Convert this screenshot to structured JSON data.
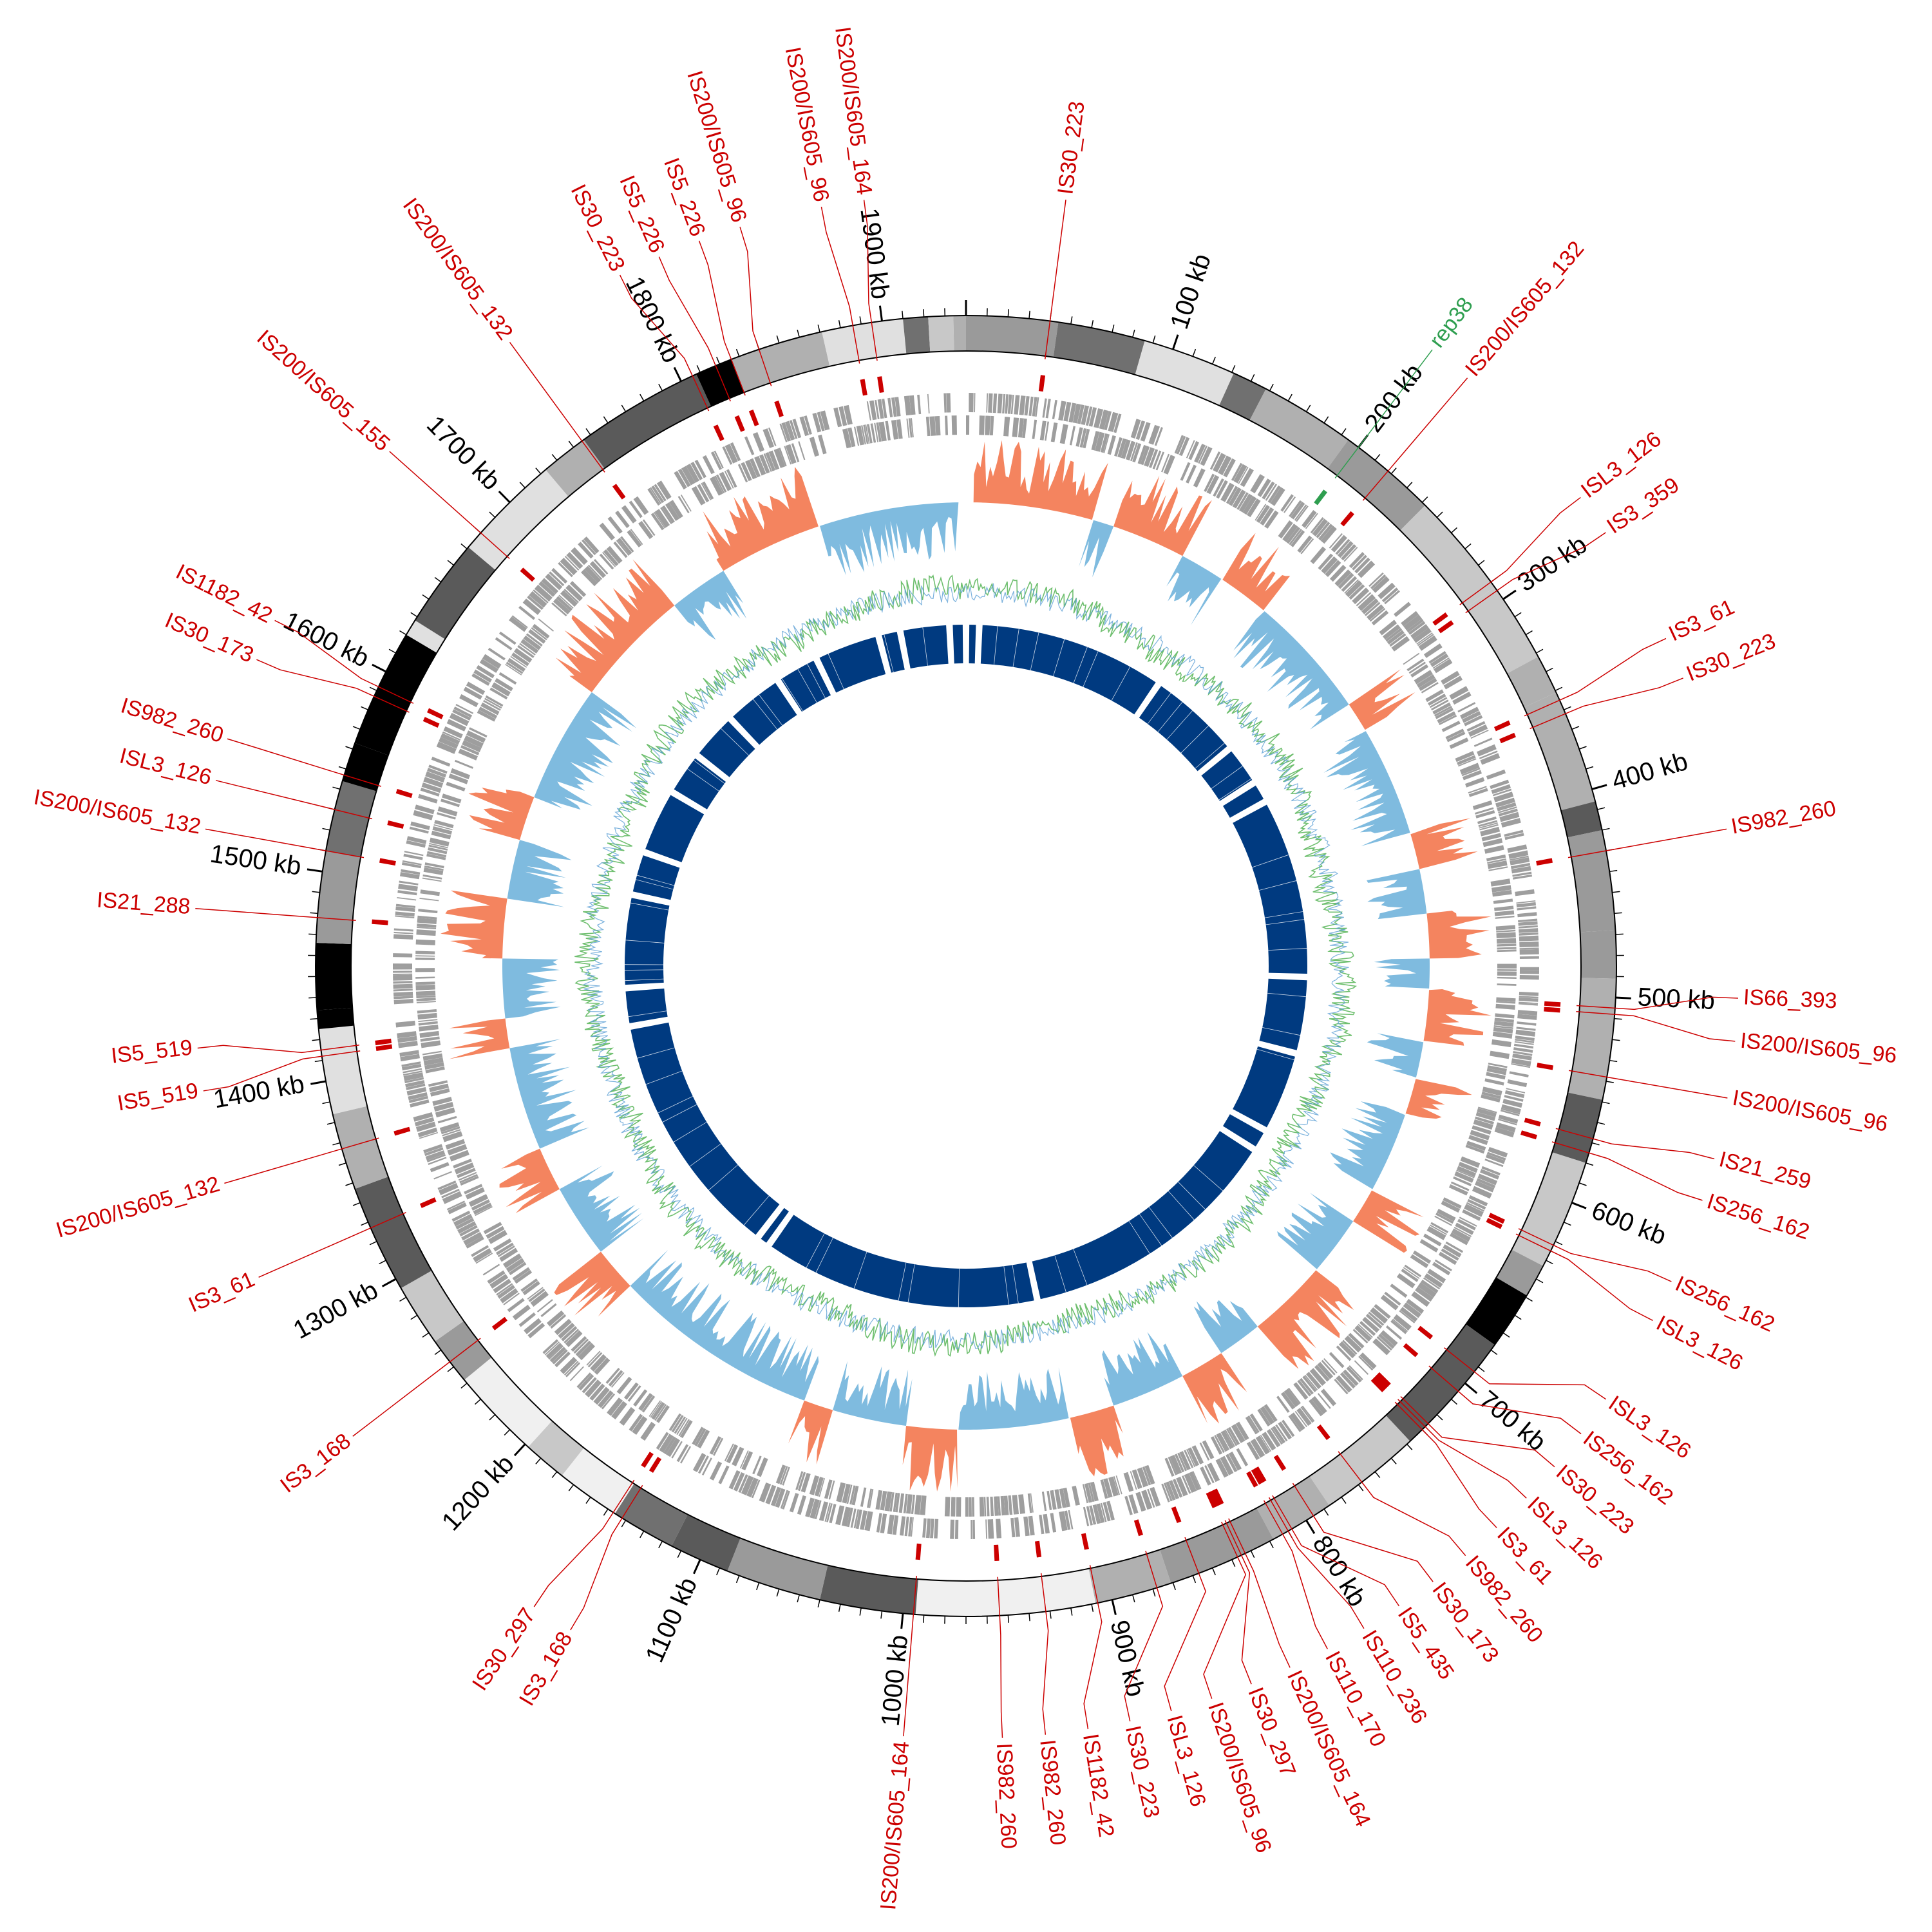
{
  "genome": {
    "length_kb": 1940,
    "tick_labels": [
      "100 kb",
      "200 kb",
      "300 kb",
      "400 kb",
      "500 kb",
      "600 kb",
      "700 kb",
      "800 kb",
      "900 kb",
      "1000 kb",
      "1100 kb",
      "1200 kb",
      "1300 kb",
      "1400 kb",
      "1500 kb",
      "1600 kb",
      "1700 kb",
      "1800 kb",
      "1900 kb"
    ],
    "tick_kb": [
      100,
      200,
      300,
      400,
      500,
      600,
      700,
      800,
      900,
      1000,
      1100,
      1200,
      1300,
      1400,
      1500,
      1600,
      1700,
      1800,
      1900
    ]
  },
  "colors": {
    "is_element": "#cc0000",
    "rep_element": "#2e9e4f",
    "gene_track": "#9e9e9e",
    "skew_positive": "#f4845f",
    "skew_negative": "#7fbbdf",
    "gc_content_primary": "#6fbf6f",
    "gc_content_secondary": "#5b9fd4",
    "inner_blocks": "#003a80"
  },
  "features": [
    {
      "name": "rep38",
      "kb": 200,
      "kind": "rep"
    },
    {
      "name": "IS30_223",
      "kb": 40,
      "kind": "is"
    },
    {
      "name": "IS200/IS605_132",
      "kb": 218,
      "kind": "is"
    },
    {
      "name": "ISL3_126",
      "kb": 290,
      "kind": "is"
    },
    {
      "name": "IS3_359",
      "kb": 295,
      "kind": "is"
    },
    {
      "name": "IS3_61",
      "kb": 355,
      "kind": "is"
    },
    {
      "name": "IS30_223",
      "kb": 362,
      "kind": "is"
    },
    {
      "name": "IS982_260",
      "kb": 430,
      "kind": "is"
    },
    {
      "name": "IS66_393",
      "kb": 505,
      "kind": "is"
    },
    {
      "name": "IS200/IS605_96",
      "kb": 508,
      "kind": "is"
    },
    {
      "name": "IS200/IS605_96",
      "kb": 538,
      "kind": "is"
    },
    {
      "name": "IS21_259",
      "kb": 568,
      "kind": "is"
    },
    {
      "name": "IS256_162",
      "kb": 575,
      "kind": "is"
    },
    {
      "name": "IS256_162",
      "kb": 622,
      "kind": "is"
    },
    {
      "name": "ISL3_126",
      "kb": 625,
      "kind": "is"
    },
    {
      "name": "ISL3_126",
      "kb": 693,
      "kind": "is"
    },
    {
      "name": "IS256_162",
      "kb": 705,
      "kind": "is"
    },
    {
      "name": "IS30_223",
      "kb": 726,
      "kind": "is"
    },
    {
      "name": "ISL3_126",
      "kb": 728,
      "kind": "is"
    },
    {
      "name": "IS3_61",
      "kb": 730,
      "kind": "is"
    },
    {
      "name": "IS982_260",
      "kb": 768,
      "kind": "is"
    },
    {
      "name": "IS30_173",
      "kb": 796,
      "kind": "is"
    },
    {
      "name": "IS5_435",
      "kb": 808,
      "kind": "is"
    },
    {
      "name": "IS110_236",
      "kb": 810,
      "kind": "is"
    },
    {
      "name": "IS110_170",
      "kb": 813,
      "kind": "is"
    },
    {
      "name": "IS200/IS605_164",
      "kb": 833,
      "kind": "is"
    },
    {
      "name": "IS30_297",
      "kb": 835,
      "kind": "is"
    },
    {
      "name": "IS200/IS605_96",
      "kb": 837,
      "kind": "is"
    },
    {
      "name": "ISL3_126",
      "kb": 857,
      "kind": "is"
    },
    {
      "name": "IS30_223",
      "kb": 878,
      "kind": "is"
    },
    {
      "name": "IS1182_42",
      "kb": 907,
      "kind": "is"
    },
    {
      "name": "IS982_260",
      "kb": 932,
      "kind": "is"
    },
    {
      "name": "IS982_260",
      "kb": 954,
      "kind": "is"
    },
    {
      "name": "IS200/IS605_164",
      "kb": 995,
      "kind": "is"
    },
    {
      "name": "IS3_168",
      "kb": 1142,
      "kind": "is"
    },
    {
      "name": "IS30_297",
      "kb": 1147,
      "kind": "is"
    },
    {
      "name": "IS3_168",
      "kb": 1253,
      "kind": "is"
    },
    {
      "name": "IS3_61",
      "kb": 1327,
      "kind": "is"
    },
    {
      "name": "IS200/IS605_132",
      "kb": 1367,
      "kind": "is"
    },
    {
      "name": "IS5_519",
      "kb": 1412,
      "kind": "is"
    },
    {
      "name": "IS5_519",
      "kb": 1415,
      "kind": "is"
    },
    {
      "name": "IS21_288",
      "kb": 1478,
      "kind": "is"
    },
    {
      "name": "IS200/IS605_132",
      "kb": 1510,
      "kind": "is"
    },
    {
      "name": "ISL3_126",
      "kb": 1530,
      "kind": "is"
    },
    {
      "name": "IS982_260",
      "kb": 1547,
      "kind": "is"
    },
    {
      "name": "IS30_173",
      "kb": 1587,
      "kind": "is"
    },
    {
      "name": "IS1182_42",
      "kb": 1592,
      "kind": "is"
    },
    {
      "name": "IS200/IS605_155",
      "kb": 1680,
      "kind": "is"
    },
    {
      "name": "IS200/IS605_132",
      "kb": 1745,
      "kind": "is"
    },
    {
      "name": "IS30_223",
      "kb": 1806,
      "kind": "is"
    },
    {
      "name": "IS5_226",
      "kb": 1818,
      "kind": "is"
    },
    {
      "name": "IS5_226",
      "kb": 1826,
      "kind": "is"
    },
    {
      "name": "IS200/IS605_96",
      "kb": 1840,
      "kind": "is"
    },
    {
      "name": "IS200/IS605_96",
      "kb": 1886,
      "kind": "is"
    },
    {
      "name": "IS200/IS605_164",
      "kb": 1895,
      "kind": "is"
    }
  ],
  "gc_skew_segments": [
    {
      "start": 5,
      "end": 85,
      "sign": "pos"
    },
    {
      "start": 85,
      "end": 100,
      "sign": "neg"
    },
    {
      "start": 100,
      "end": 150,
      "sign": "pos"
    },
    {
      "start": 150,
      "end": 180,
      "sign": "neg"
    },
    {
      "start": 180,
      "end": 215,
      "sign": "pos"
    },
    {
      "start": 215,
      "end": 300,
      "sign": "neg"
    },
    {
      "start": 300,
      "end": 320,
      "sign": "pos"
    },
    {
      "start": 320,
      "end": 395,
      "sign": "neg"
    },
    {
      "start": 395,
      "end": 420,
      "sign": "pos"
    },
    {
      "start": 420,
      "end": 450,
      "sign": "neg"
    },
    {
      "start": 450,
      "end": 480,
      "sign": "pos"
    },
    {
      "start": 480,
      "end": 500,
      "sign": "neg"
    },
    {
      "start": 500,
      "end": 535,
      "sign": "pos"
    },
    {
      "start": 535,
      "end": 560,
      "sign": "neg"
    },
    {
      "start": 560,
      "end": 585,
      "sign": "pos"
    },
    {
      "start": 585,
      "end": 640,
      "sign": "neg"
    },
    {
      "start": 640,
      "end": 665,
      "sign": "pos"
    },
    {
      "start": 665,
      "end": 705,
      "sign": "neg"
    },
    {
      "start": 705,
      "end": 760,
      "sign": "pos"
    },
    {
      "start": 760,
      "end": 790,
      "sign": "neg"
    },
    {
      "start": 790,
      "end": 820,
      "sign": "pos"
    },
    {
      "start": 820,
      "end": 870,
      "sign": "neg"
    },
    {
      "start": 870,
      "end": 900,
      "sign": "pos"
    },
    {
      "start": 900,
      "end": 975,
      "sign": "neg"
    },
    {
      "start": 975,
      "end": 1010,
      "sign": "pos"
    },
    {
      "start": 1010,
      "end": 1060,
      "sign": "neg"
    },
    {
      "start": 1060,
      "end": 1080,
      "sign": "pos"
    },
    {
      "start": 1080,
      "end": 1220,
      "sign": "neg"
    },
    {
      "start": 1220,
      "end": 1250,
      "sign": "pos"
    },
    {
      "start": 1250,
      "end": 1300,
      "sign": "neg"
    },
    {
      "start": 1300,
      "end": 1330,
      "sign": "pos"
    },
    {
      "start": 1330,
      "end": 1400,
      "sign": "neg"
    },
    {
      "start": 1400,
      "end": 1420,
      "sign": "pos"
    },
    {
      "start": 1420,
      "end": 1460,
      "sign": "neg"
    },
    {
      "start": 1460,
      "end": 1500,
      "sign": "pos"
    },
    {
      "start": 1500,
      "end": 1540,
      "sign": "neg"
    },
    {
      "start": 1540,
      "end": 1570,
      "sign": "pos"
    },
    {
      "start": 1570,
      "end": 1650,
      "sign": "neg"
    },
    {
      "start": 1650,
      "end": 1730,
      "sign": "pos"
    },
    {
      "start": 1730,
      "end": 1770,
      "sign": "neg"
    },
    {
      "start": 1770,
      "end": 1840,
      "sign": "pos"
    },
    {
      "start": 1840,
      "end": 1935,
      "sign": "neg"
    }
  ],
  "inner_block_gaps_kb": [
    0,
    12,
    185,
    272,
    310,
    330,
    495,
    565,
    640,
    660,
    905,
    1160,
    1172,
    1400,
    1435,
    1520,
    1560,
    1620,
    1660,
    1705,
    1760,
    1800,
    1860,
    1880,
    1925
  ]
}
